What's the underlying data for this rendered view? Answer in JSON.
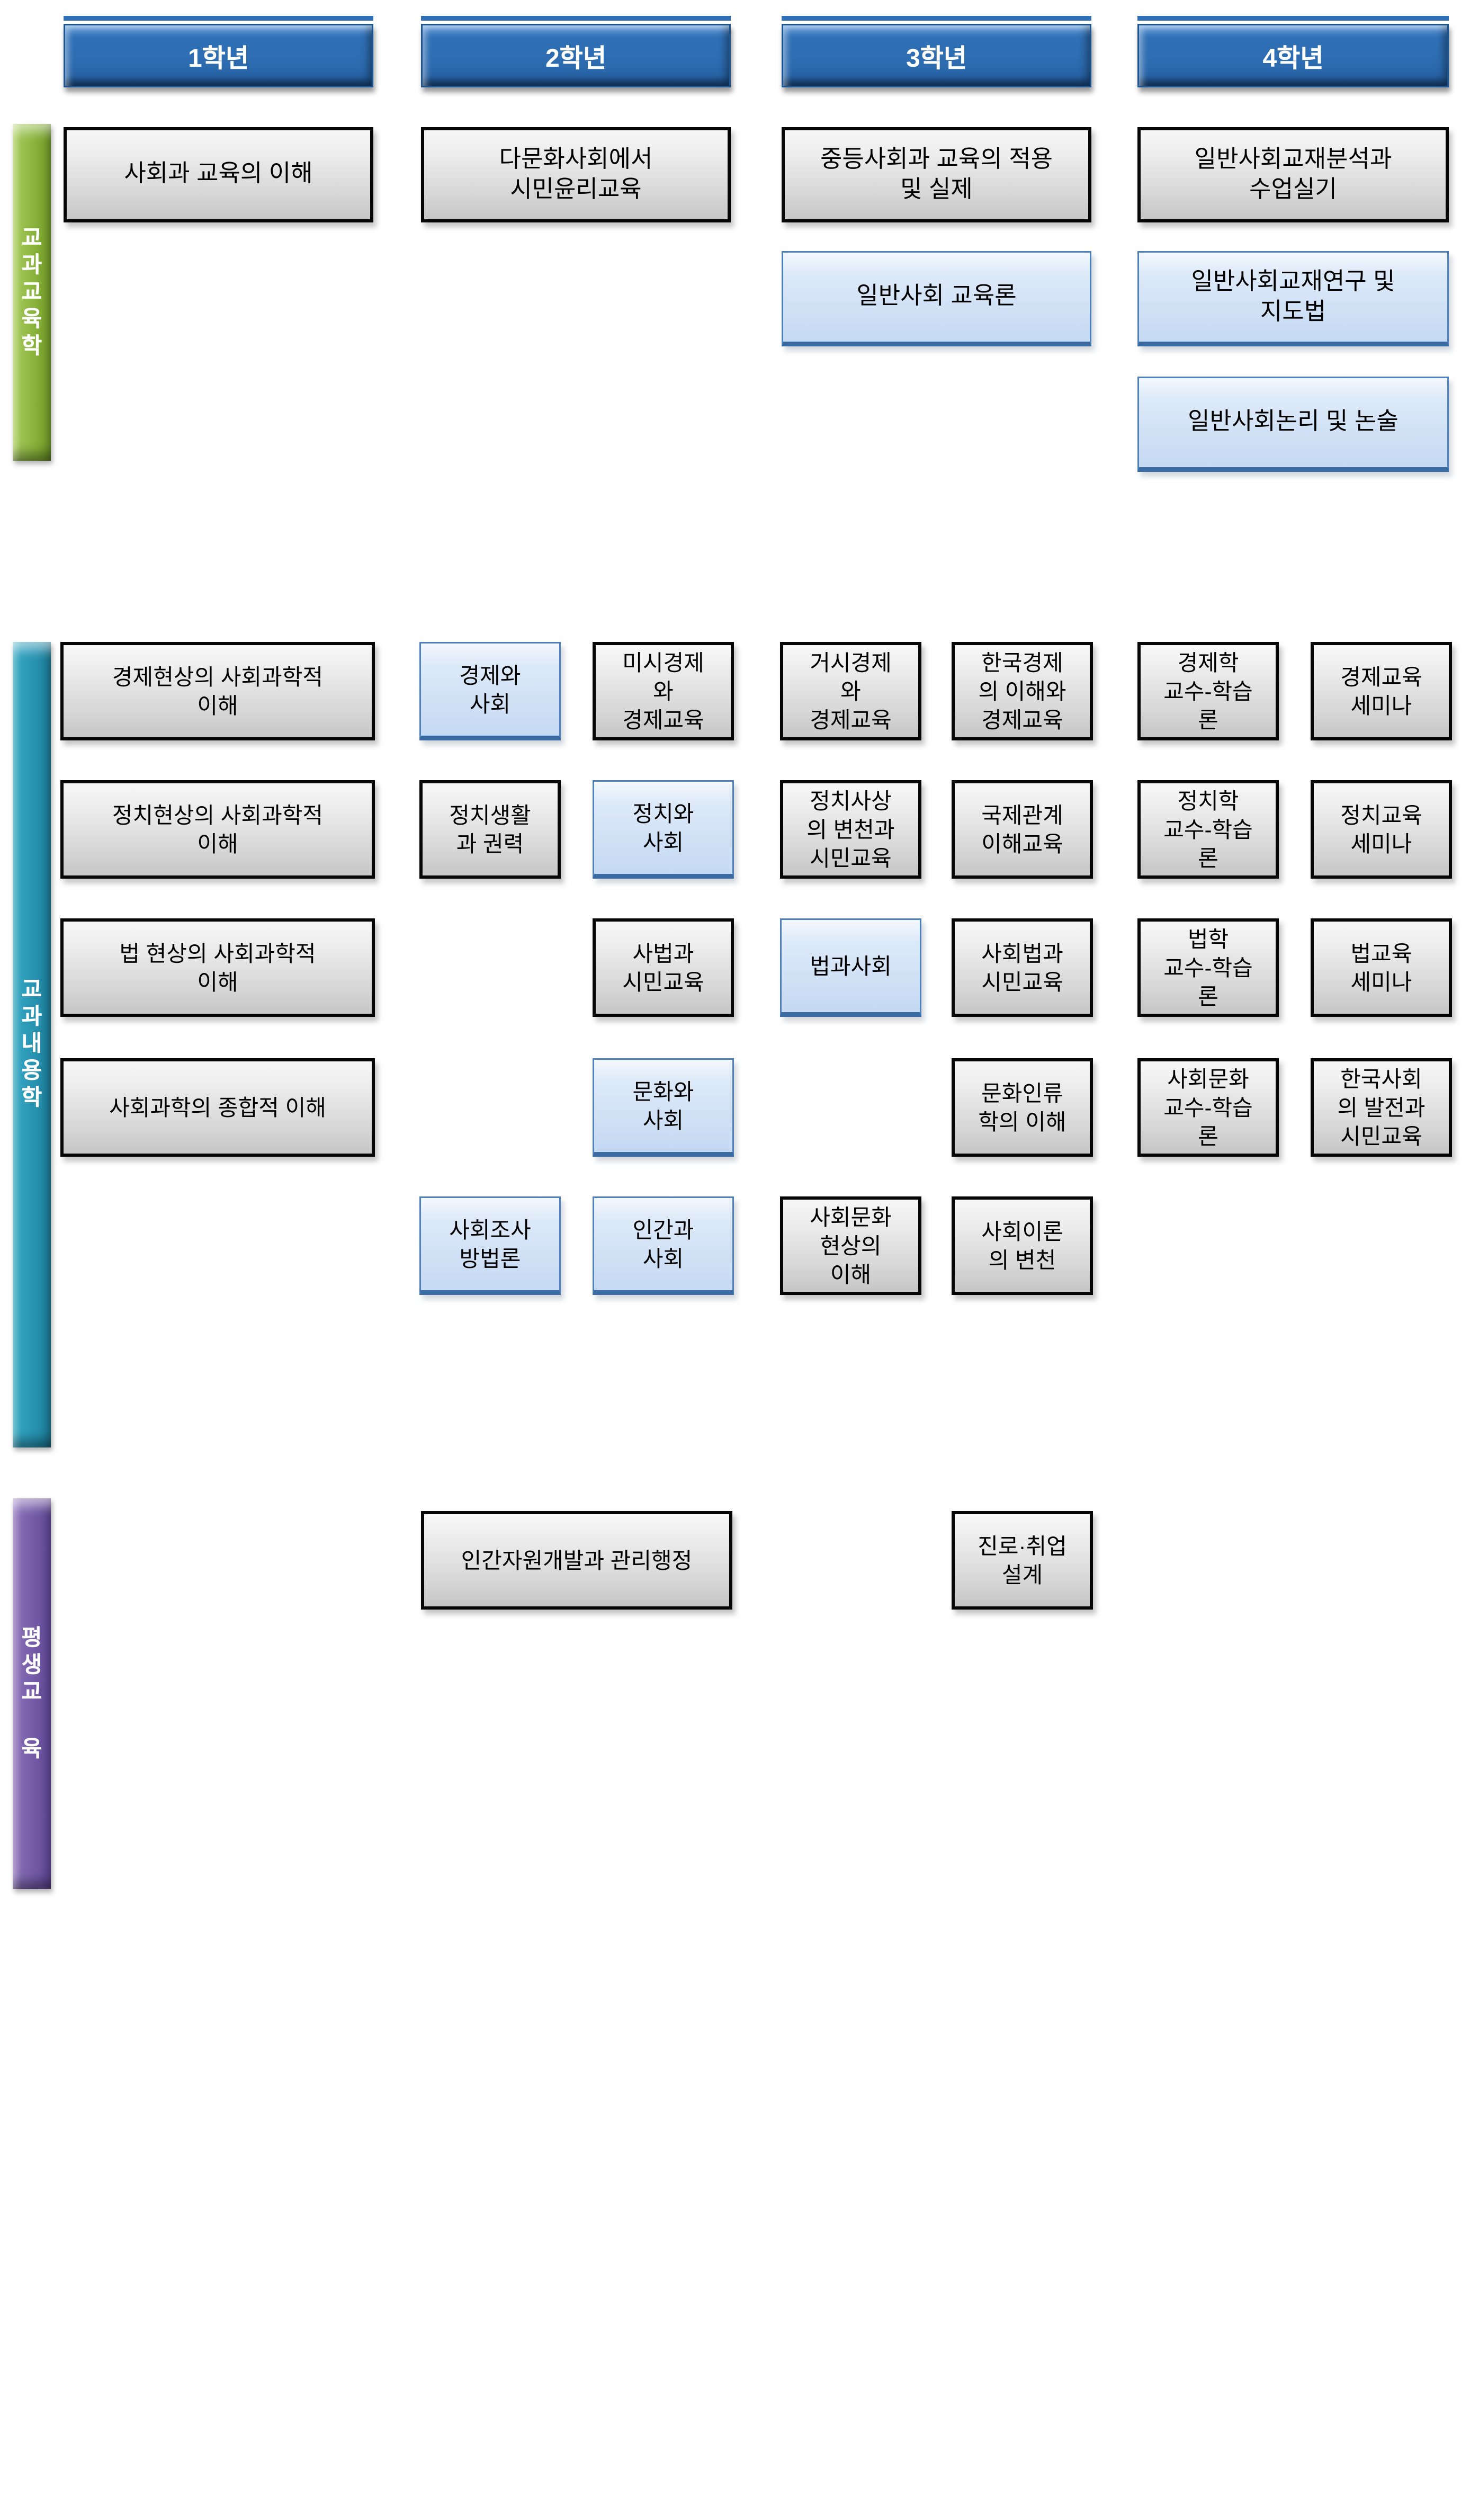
{
  "colors": {
    "header_blue": "#2e6fb7",
    "gray_box_fill": "#d9d9d9",
    "blue_box_fill": "#c5d9f3",
    "blue_box_border": "#4f81bd",
    "green_bar": "#8ab43c",
    "teal_bar": "#2792b0",
    "purple_bar": "#7258a5"
  },
  "year_headers": [
    {
      "label": "1학년"
    },
    {
      "label": "2학년"
    },
    {
      "label": "3학년"
    },
    {
      "label": "4학년"
    }
  ],
  "sections": [
    {
      "sidebar_label": "교과교육학",
      "boxes": [
        {
          "label": "사회과 교육의 이해",
          "col": "1",
          "row": "1",
          "style": "gray"
        },
        {
          "label": "다문화사회에서\n시민윤리교육",
          "col": "2",
          "row": "1",
          "style": "gray"
        },
        {
          "label": "중등사회과 교육의 적용\n및 실제",
          "col": "3",
          "row": "1",
          "style": "gray"
        },
        {
          "label": "일반사회교재분석과\n수업실기",
          "col": "4",
          "row": "1",
          "style": "gray"
        },
        {
          "label": "일반사회 교육론",
          "col": "3",
          "row": "2",
          "style": "blue"
        },
        {
          "label": "일반사회교재연구 및\n지도법",
          "col": "4",
          "row": "2",
          "style": "blue"
        },
        {
          "label": "일반사회논리 및 논술",
          "col": "4",
          "row": "3",
          "style": "blue"
        }
      ]
    },
    {
      "sidebar_label": "교과내용학",
      "boxes": [
        {
          "label": "경제현상의 사회과학적\n이해",
          "col": "A",
          "row": "1",
          "style": "gray"
        },
        {
          "label": "경제와\n사회",
          "col": "B",
          "row": "1",
          "style": "blue"
        },
        {
          "label": "미시경제\n와\n경제교육",
          "col": "C",
          "row": "1",
          "style": "gray"
        },
        {
          "label": "거시경제\n와\n경제교육",
          "col": "D",
          "row": "1",
          "style": "gray"
        },
        {
          "label": "한국경제\n의 이해와\n경제교육",
          "col": "E",
          "row": "1",
          "style": "gray"
        },
        {
          "label": "경제학\n교수-학습\n론",
          "col": "F",
          "row": "1",
          "style": "gray"
        },
        {
          "label": "경제교육\n세미나",
          "col": "G",
          "row": "1",
          "style": "gray"
        },
        {
          "label": "정치현상의 사회과학적\n이해",
          "col": "A",
          "row": "2",
          "style": "gray"
        },
        {
          "label": "정치생활\n과 권력",
          "col": "B",
          "row": "2",
          "style": "gray"
        },
        {
          "label": "정치와\n사회",
          "col": "C",
          "row": "2",
          "style": "blue"
        },
        {
          "label": "정치사상\n의 변천과\n시민교육",
          "col": "D",
          "row": "2",
          "style": "gray"
        },
        {
          "label": "국제관계\n이해교육",
          "col": "E",
          "row": "2",
          "style": "gray"
        },
        {
          "label": "정치학\n교수-학습\n론",
          "col": "F",
          "row": "2",
          "style": "gray"
        },
        {
          "label": "정치교육\n세미나",
          "col": "G",
          "row": "2",
          "style": "gray"
        },
        {
          "label": "법 현상의 사회과학적\n이해",
          "col": "A",
          "row": "3",
          "style": "gray"
        },
        {
          "label": "사법과\n시민교육",
          "col": "C",
          "row": "3",
          "style": "gray"
        },
        {
          "label": "법과사회",
          "col": "D",
          "row": "3",
          "style": "blue"
        },
        {
          "label": "사회법과\n시민교육",
          "col": "E",
          "row": "3",
          "style": "gray"
        },
        {
          "label": "법학\n교수-학습\n론",
          "col": "F",
          "row": "3",
          "style": "gray"
        },
        {
          "label": "법교육\n세미나",
          "col": "G",
          "row": "3",
          "style": "gray"
        },
        {
          "label": "사회과학의 종합적 이해",
          "col": "A",
          "row": "4",
          "style": "gray"
        },
        {
          "label": "문화와\n사회",
          "col": "C",
          "row": "4",
          "style": "blue"
        },
        {
          "label": "문화인류\n학의 이해",
          "col": "E",
          "row": "4",
          "style": "gray"
        },
        {
          "label": "사회문화\n교수-학습\n론",
          "col": "F",
          "row": "4",
          "style": "gray"
        },
        {
          "label": "한국사회\n의 발전과\n시민교육",
          "col": "G",
          "row": "4",
          "style": "gray"
        },
        {
          "label": "사회조사\n방법론",
          "col": "B",
          "row": "5",
          "style": "blue"
        },
        {
          "label": "인간과\n사회",
          "col": "C",
          "row": "5",
          "style": "blue"
        },
        {
          "label": "사회문화\n현상의\n이해",
          "col": "D",
          "row": "5",
          "style": "gray"
        },
        {
          "label": "사회이론\n의 변천",
          "col": "E",
          "row": "5",
          "style": "gray"
        }
      ]
    },
    {
      "sidebar_label": "평생교 육",
      "boxes": [
        {
          "label": "인간자원개발과 관리행정",
          "col": "wide",
          "row": "1",
          "style": "gray"
        },
        {
          "label": "진로·취업\n설계",
          "col": "E",
          "row": "1",
          "style": "gray"
        }
      ]
    }
  ]
}
